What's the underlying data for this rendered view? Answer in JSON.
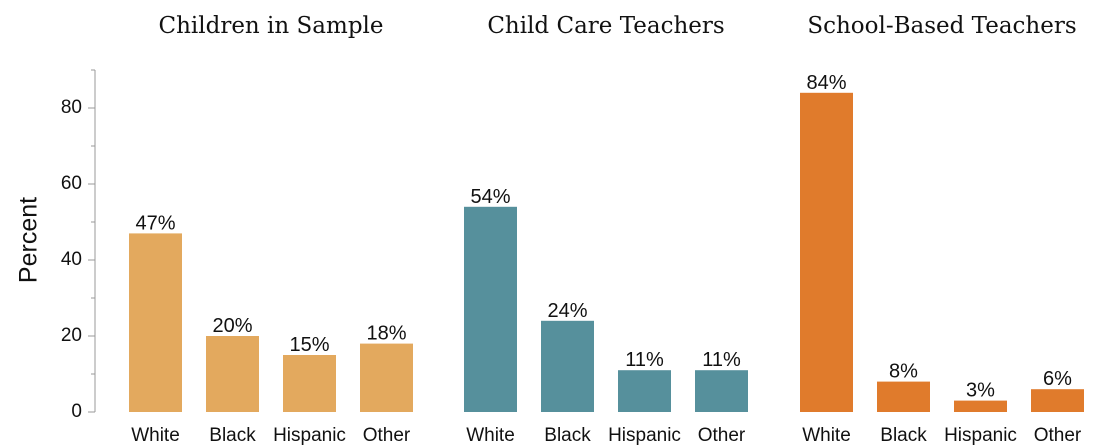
{
  "chart_data": {
    "type": "bar",
    "ylabel": "Percent",
    "ylim": [
      0,
      90
    ],
    "yticks": [
      0,
      20,
      40,
      60,
      80
    ],
    "categories": [
      "White",
      "Black",
      "Hispanic",
      "Other"
    ],
    "panels": [
      {
        "title": "Children in Sample",
        "color": "#E3A95E",
        "values": [
          47,
          20,
          15,
          18
        ],
        "labels": [
          "47%",
          "20%",
          "15%",
          "18%"
        ]
      },
      {
        "title": "Child Care Teachers",
        "color": "#56909C",
        "values": [
          54,
          24,
          11,
          11
        ],
        "labels": [
          "54%",
          "24%",
          "11%",
          "11%"
        ]
      },
      {
        "title": "School-Based Teachers",
        "color": "#E07B2C",
        "values": [
          84,
          8,
          3,
          6
        ],
        "labels": [
          "84%",
          "8%",
          "3%",
          "6%"
        ]
      }
    ]
  }
}
